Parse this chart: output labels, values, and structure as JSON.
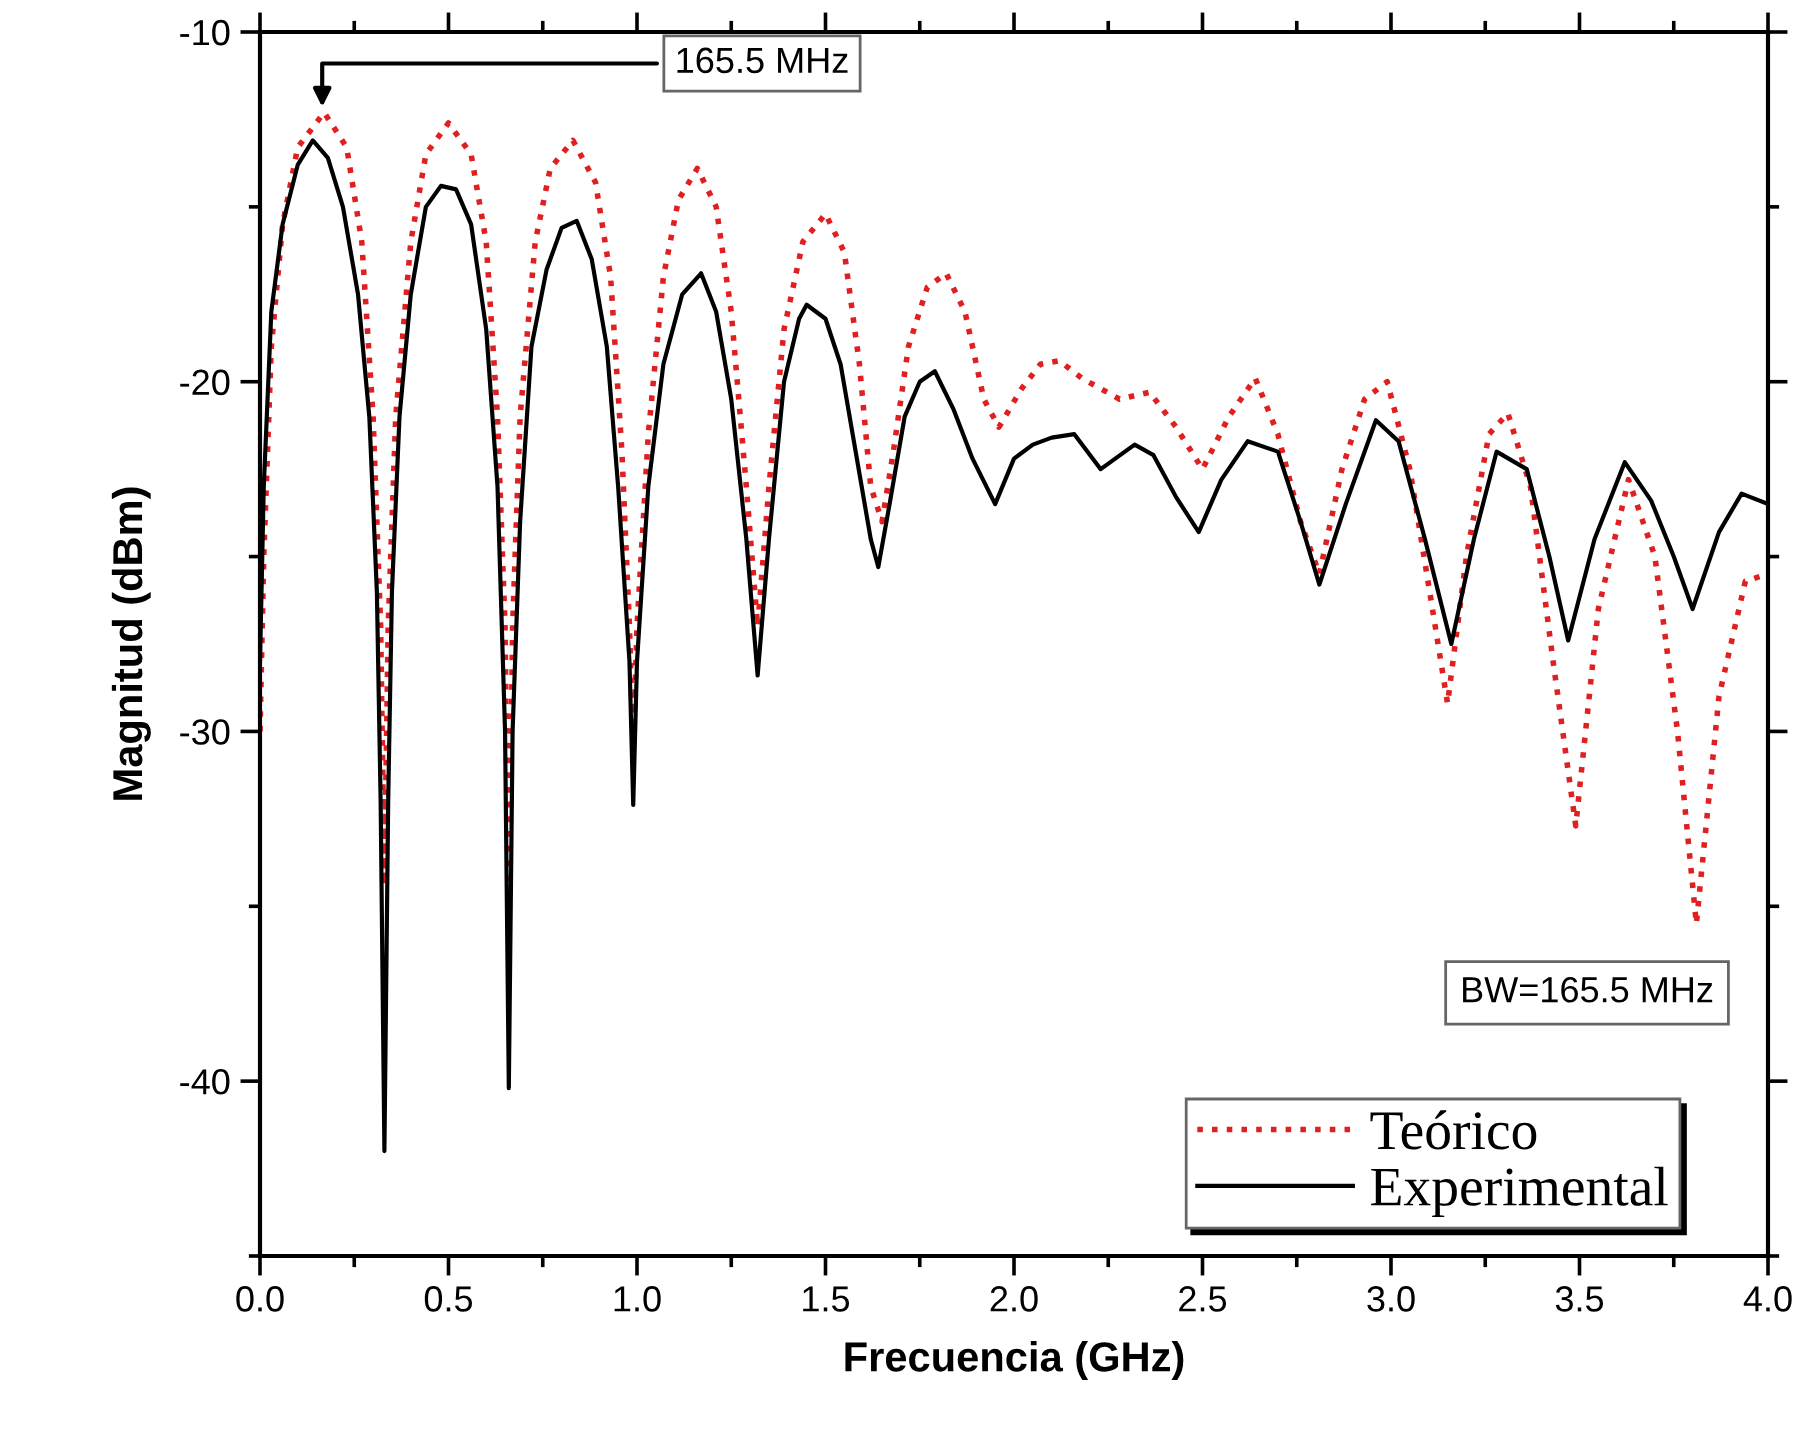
{
  "chart_data": {
    "type": "line",
    "xlabel": "Frecuencia (GHz)",
    "ylabel": "Magnitud (dBm)",
    "xlim": [
      0.0,
      4.0
    ],
    "ylim": [
      -45,
      -10
    ],
    "xticks": [
      {
        "value": 0,
        "label": "0.0"
      },
      0.5,
      {
        "value": 1,
        "label": "1.0"
      },
      1.5,
      {
        "value": 2,
        "label": "2.0"
      },
      2.5,
      {
        "value": 3,
        "label": "3.0"
      },
      3.5,
      {
        "value": 4,
        "label": "4.0"
      }
    ],
    "yticks": [
      -40,
      -30,
      -20,
      -10
    ],
    "grid": false,
    "legend": "bottom right",
    "annotations": [
      {
        "text": "165.5 MHz",
        "x": 0.165,
        "y": -12.3
      },
      "BW=165.5 MHz"
    ],
    "series": [
      {
        "name": "Teórico",
        "color": "#e02020",
        "line_style": "dotted",
        "x": [
          0.0,
          0.01,
          0.03,
          0.06,
          0.1,
          0.17,
          0.23,
          0.27,
          0.3,
          0.32,
          0.33,
          0.34,
          0.36,
          0.4,
          0.44,
          0.5,
          0.56,
          0.6,
          0.63,
          0.65,
          0.66,
          0.67,
          0.69,
          0.73,
          0.77,
          0.83,
          0.89,
          0.93,
          0.96,
          0.98,
          0.99,
          1.0,
          1.03,
          1.07,
          1.11,
          1.16,
          1.21,
          1.25,
          1.29,
          1.32,
          1.35,
          1.39,
          1.44,
          1.5,
          1.55,
          1.59,
          1.62,
          1.65,
          1.68,
          1.72,
          1.77,
          1.82,
          1.87,
          1.92,
          1.96,
          2.02,
          2.07,
          2.12,
          2.18,
          2.28,
          2.36,
          2.43,
          2.5,
          2.57,
          2.64,
          2.7,
          2.76,
          2.81,
          2.87,
          2.93,
          2.99,
          3.05,
          3.11,
          3.15,
          3.2,
          3.26,
          3.31,
          3.37,
          3.43,
          3.49,
          3.55,
          3.63,
          3.7,
          3.76,
          3.81,
          3.87,
          3.94,
          4.0
        ],
        "values": [
          -30,
          -25,
          -19,
          -15.5,
          -13.3,
          -12.3,
          -13.3,
          -16,
          -21,
          -27,
          -34.4,
          -27,
          -21,
          -16,
          -13.5,
          -12.6,
          -13.5,
          -16,
          -21,
          -27,
          -36.3,
          -27,
          -21,
          -16,
          -13.9,
          -13.1,
          -14.3,
          -17,
          -22,
          -27,
          -30.6,
          -27,
          -21.5,
          -17,
          -14.8,
          -13.9,
          -15,
          -18,
          -23,
          -27,
          -23,
          -18.5,
          -16,
          -15.2,
          -16.3,
          -19.5,
          -23,
          -24,
          -22,
          -19,
          -17.3,
          -16.9,
          -18,
          -20.5,
          -21.3,
          -20.2,
          -19.5,
          -19.4,
          -19.9,
          -20.5,
          -20.3,
          -21.3,
          -22.5,
          -21,
          -19.9,
          -21.5,
          -24,
          -25.5,
          -22.5,
          -20.5,
          -20.0,
          -22.5,
          -26.5,
          -29.2,
          -25,
          -21.5,
          -20.9,
          -23,
          -28,
          -32.7,
          -26.5,
          -22.8,
          -25,
          -30,
          -35.5,
          -29,
          -25.7,
          -25.5
        ]
      },
      {
        "name": "Experimental",
        "color": "#000000",
        "line_style": "solid",
        "x": [
          0.0,
          0.01,
          0.03,
          0.06,
          0.1,
          0.14,
          0.18,
          0.22,
          0.26,
          0.29,
          0.31,
          0.32,
          0.33,
          0.34,
          0.35,
          0.37,
          0.4,
          0.44,
          0.48,
          0.52,
          0.56,
          0.6,
          0.63,
          0.65,
          0.66,
          0.67,
          0.69,
          0.72,
          0.76,
          0.8,
          0.84,
          0.88,
          0.92,
          0.95,
          0.98,
          0.99,
          1.0,
          1.03,
          1.07,
          1.12,
          1.17,
          1.21,
          1.25,
          1.29,
          1.32,
          1.35,
          1.39,
          1.43,
          1.45,
          1.5,
          1.54,
          1.58,
          1.62,
          1.64,
          1.67,
          1.71,
          1.75,
          1.79,
          1.84,
          1.89,
          1.95,
          2.0,
          2.05,
          2.1,
          2.16,
          2.23,
          2.32,
          2.37,
          2.43,
          2.49,
          2.55,
          2.62,
          2.7,
          2.76,
          2.81,
          2.88,
          2.96,
          3.02,
          3.09,
          3.16,
          3.22,
          3.28,
          3.36,
          3.42,
          3.47,
          3.54,
          3.62,
          3.69,
          3.75,
          3.8,
          3.87,
          3.93,
          4.0
        ],
        "values": [
          -28,
          -23,
          -18,
          -15.5,
          -13.8,
          -13.1,
          -13.6,
          -15.0,
          -17.5,
          -21,
          -26,
          -32,
          -42.0,
          -32,
          -26,
          -21,
          -17.5,
          -15.0,
          -14.4,
          -14.5,
          -15.5,
          -18.5,
          -23,
          -30,
          -40.2,
          -30,
          -24,
          -19,
          -16.8,
          -15.6,
          -15.4,
          -16.5,
          -19,
          -23,
          -28,
          -32.1,
          -28,
          -23,
          -19.5,
          -17.5,
          -16.9,
          -18,
          -20.5,
          -24.5,
          -28.4,
          -24.5,
          -20,
          -18.2,
          -17.8,
          -18.2,
          -19.5,
          -22,
          -24.5,
          -25.3,
          -23.5,
          -21,
          -20,
          -19.7,
          -20.8,
          -22.2,
          -23.5,
          -22.2,
          -21.8,
          -21.6,
          -21.5,
          -22.5,
          -21.8,
          -22.1,
          -23.3,
          -24.3,
          -22.8,
          -21.7,
          -22.0,
          -24.0,
          -25.8,
          -23.5,
          -21.1,
          -21.7,
          -24.5,
          -27.5,
          -24.5,
          -22.0,
          -22.5,
          -25.0,
          -27.4,
          -24.5,
          -22.3,
          -23.4,
          -25.0,
          -26.5,
          -24.3,
          -23.2,
          -23.5
        ]
      }
    ]
  }
}
